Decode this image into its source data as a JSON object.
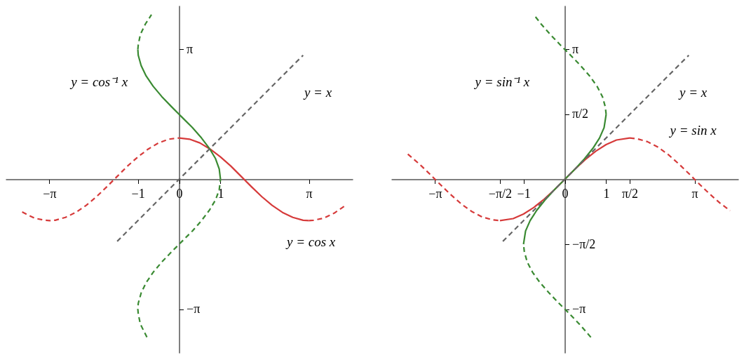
{
  "chart_data": [
    {
      "type": "line",
      "xlim": [
        -4.2,
        4.2
      ],
      "ylim": [
        -4.2,
        4.2
      ],
      "xticks": [
        {
          "value": -3.14159,
          "label": "−π"
        },
        {
          "value": -1,
          "label": "−1"
        },
        {
          "value": 0,
          "label": "0"
        },
        {
          "value": 1,
          "label": "1"
        },
        {
          "value": 3.14159,
          "label": "π"
        }
      ],
      "yticks": [
        {
          "value": -3.14159,
          "label": "−π"
        },
        {
          "value": 3.14159,
          "label": "π"
        }
      ],
      "series": [
        {
          "color": "#d63a3a",
          "line_style": "dashed",
          "x": [
            -3.8,
            -3.5,
            -3.25,
            -3.14,
            -3,
            -2.75,
            -2.5,
            -2.25,
            -2,
            -1.75,
            -1.5,
            -1.25,
            -1,
            -0.75,
            -0.5,
            -0.25,
            0
          ],
          "values": [
            -0.79,
            -0.94,
            -0.99,
            -1,
            -0.99,
            -0.92,
            -0.8,
            -0.63,
            -0.42,
            -0.18,
            0.07,
            0.32,
            0.54,
            0.73,
            0.88,
            0.97,
            1
          ]
        },
        {
          "color": "#d63a3a",
          "line_style": "solid",
          "x": [
            0,
            0.25,
            0.5,
            0.75,
            1,
            1.25,
            1.5,
            1.75,
            2,
            2.25,
            2.5,
            2.75,
            3,
            3.14
          ],
          "values": [
            1,
            0.97,
            0.88,
            0.73,
            0.54,
            0.32,
            0.07,
            -0.18,
            -0.42,
            -0.63,
            -0.8,
            -0.92,
            -0.99,
            -1
          ]
        },
        {
          "color": "#d63a3a",
          "line_style": "dashed",
          "x": [
            3.14,
            3.25,
            3.5,
            3.75,
            4
          ],
          "values": [
            -1,
            -0.99,
            -0.94,
            -0.82,
            -0.65
          ]
        },
        {
          "color": "#3a8a32",
          "line_style": "solid",
          "x": [
            1,
            0.97,
            0.88,
            0.73,
            0.54,
            0.32,
            0.07,
            -0.18,
            -0.42,
            -0.63,
            -0.8,
            -0.92,
            -0.99,
            -1
          ],
          "values": [
            0,
            0.25,
            0.5,
            0.75,
            1,
            1.25,
            1.5,
            1.75,
            2,
            2.25,
            2.5,
            2.75,
            3,
            3.14
          ]
        },
        {
          "color": "#3a8a32",
          "line_style": "dashed",
          "x": [
            -1,
            -0.99,
            -0.94,
            -0.82,
            -0.67
          ],
          "values": [
            3.14,
            3.25,
            3.5,
            3.75,
            3.98
          ]
        },
        {
          "color": "#3a8a32",
          "line_style": "dashed",
          "x": [
            -0.78,
            -0.94,
            -0.99,
            -1,
            -0.99,
            -0.92,
            -0.8,
            -0.63,
            -0.42,
            -0.18,
            0.07,
            0.32,
            0.54,
            0.73,
            0.88,
            0.97,
            1
          ],
          "values": [
            -3.82,
            -3.5,
            -3.25,
            -3.14,
            -3,
            -2.75,
            -2.5,
            -2.25,
            -2,
            -1.75,
            -1.5,
            -1.25,
            -1,
            -0.75,
            -0.5,
            -0.25,
            0
          ]
        },
        {
          "color": "#666666",
          "line_style": "dashed",
          "x": [
            -1.5,
            3
          ],
          "values": [
            -1.5,
            3
          ]
        }
      ],
      "annotations": [
        "y = cos⁻¹ x",
        "y = x",
        "y = cos x"
      ]
    },
    {
      "type": "line",
      "xlim": [
        -4.2,
        4.2
      ],
      "ylim": [
        -4.2,
        4.2
      ],
      "xticks": [
        {
          "value": -3.14159,
          "label": "−π"
        },
        {
          "value": -1.5708,
          "label": "−π/2"
        },
        {
          "value": -1,
          "label": "−1"
        },
        {
          "value": 0,
          "label": "0"
        },
        {
          "value": 1,
          "label": "1"
        },
        {
          "value": 1.5708,
          "label": "π/2"
        },
        {
          "value": 3.14159,
          "label": "π"
        }
      ],
      "yticks": [
        {
          "value": -3.14159,
          "label": "−π"
        },
        {
          "value": -1.5708,
          "label": "−π/2"
        },
        {
          "value": 1.5708,
          "label": "π/2"
        },
        {
          "value": 3.14159,
          "label": "π"
        }
      ],
      "series": [
        {
          "color": "#d63a3a",
          "line_style": "dashed",
          "x": [
            -3.8,
            -3.5,
            -3.25,
            -3.14,
            -3,
            -2.75,
            -2.5,
            -2.25,
            -2,
            -1.75,
            -1.57
          ],
          "values": [
            0.61,
            0.35,
            0.11,
            0,
            -0.14,
            -0.38,
            -0.6,
            -0.78,
            -0.91,
            -0.98,
            -1
          ]
        },
        {
          "color": "#d63a3a",
          "line_style": "solid",
          "x": [
            -1.57,
            -1.25,
            -1,
            -0.75,
            -0.5,
            -0.25,
            0,
            0.25,
            0.5,
            0.75,
            1,
            1.25,
            1.57
          ],
          "values": [
            -1,
            -0.95,
            -0.84,
            -0.68,
            -0.48,
            -0.25,
            0,
            0.25,
            0.48,
            0.68,
            0.84,
            0.95,
            1
          ]
        },
        {
          "color": "#d63a3a",
          "line_style": "dashed",
          "x": [
            1.57,
            1.75,
            2,
            2.25,
            2.5,
            2.75,
            3,
            3.14,
            3.25,
            3.5,
            3.75,
            4
          ],
          "values": [
            1,
            0.98,
            0.91,
            0.78,
            0.6,
            0.38,
            0.14,
            0,
            -0.11,
            -0.35,
            -0.57,
            -0.76
          ]
        },
        {
          "color": "#3a8a32",
          "line_style": "solid",
          "x": [
            -1,
            -0.95,
            -0.84,
            -0.68,
            -0.48,
            -0.25,
            0,
            0.25,
            0.48,
            0.68,
            0.84,
            0.95,
            1
          ],
          "values": [
            -1.57,
            -1.25,
            -1,
            -0.75,
            -0.5,
            -0.25,
            0,
            0.25,
            0.5,
            0.75,
            1,
            1.25,
            1.57
          ]
        },
        {
          "color": "#3a8a32",
          "line_style": "dashed",
          "x": [
            1,
            0.98,
            0.91,
            0.78,
            0.6,
            0.38,
            0.14,
            0,
            -0.11,
            -0.35,
            -0.57,
            -0.75
          ],
          "values": [
            1.57,
            1.75,
            2,
            2.25,
            2.5,
            2.75,
            3,
            3.14,
            3.25,
            3.5,
            3.75,
            3.98
          ]
        },
        {
          "color": "#3a8a32",
          "line_style": "dashed",
          "x": [
            0.63,
            0.35,
            0.11,
            0,
            -0.14,
            -0.38,
            -0.6,
            -0.78,
            -0.91,
            -0.98,
            -1
          ],
          "values": [
            -3.82,
            -3.5,
            -3.25,
            -3.14,
            -3,
            -2.75,
            -2.5,
            -2.25,
            -2,
            -1.75,
            -1.57
          ]
        },
        {
          "color": "#666666",
          "line_style": "dashed",
          "x": [
            -1.5,
            3
          ],
          "values": [
            -1.5,
            3
          ]
        }
      ],
      "annotations": [
        "y = sin⁻¹ x",
        "y = x",
        "y = sin x"
      ]
    }
  ]
}
